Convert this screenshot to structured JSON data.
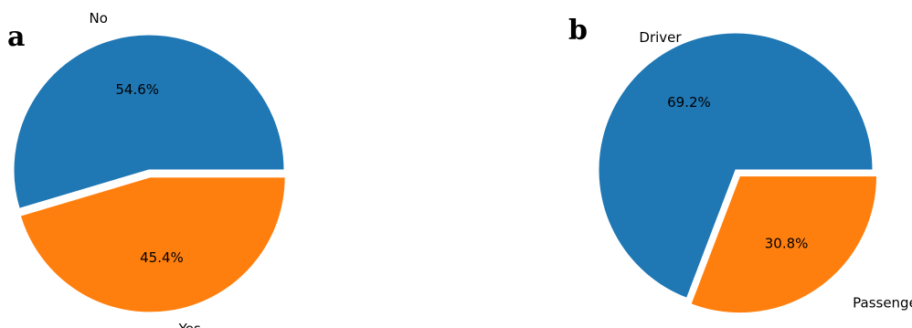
{
  "chart_data": [
    {
      "type": "pie",
      "panel": "a",
      "categories": [
        "No",
        "Yes"
      ],
      "values": [
        54.6,
        45.4
      ],
      "value_labels": [
        "54.6%",
        "45.4%"
      ],
      "colors": [
        "#1f77b4",
        "#ff7f0e"
      ],
      "start_angle_deg": 0,
      "direction": "counterclockwise",
      "exploded": "Yes"
    },
    {
      "type": "pie",
      "panel": "b",
      "categories": [
        "Driver",
        "Passenger"
      ],
      "values": [
        69.2,
        30.8
      ],
      "value_labels": [
        "69.2%",
        "30.8%"
      ],
      "colors": [
        "#1f77b4",
        "#ff7f0e"
      ],
      "start_angle_deg": 0,
      "direction": "counterclockwise",
      "exploded": "Passenger"
    }
  ]
}
